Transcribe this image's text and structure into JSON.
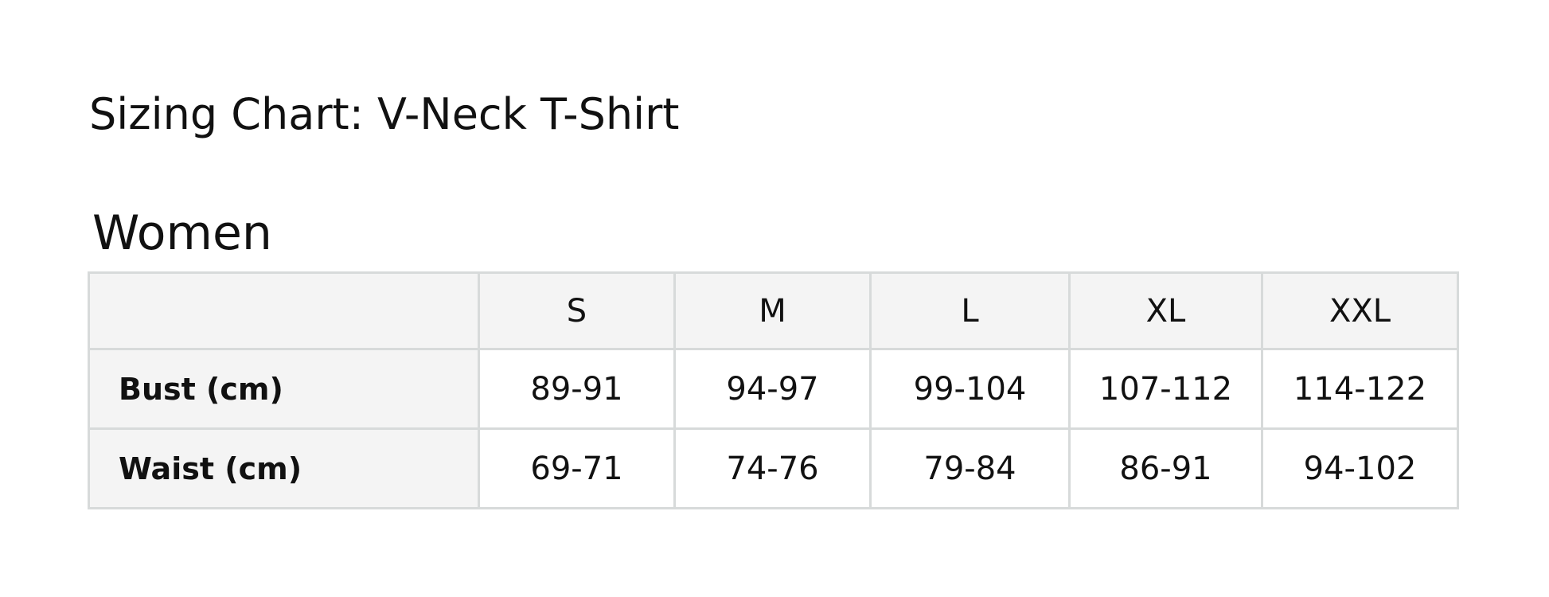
{
  "title": "Sizing Chart: V-Neck T-Shirt",
  "section": "Women",
  "table": {
    "headers": [
      "",
      "S",
      "M",
      "L",
      "XL",
      "XXL"
    ],
    "rows": [
      {
        "label": "Bust (cm)",
        "values": [
          "89-91",
          "94-97",
          "99-104",
          "107-112",
          "114-122"
        ]
      },
      {
        "label": "Waist (cm)",
        "values": [
          "69-71",
          "74-76",
          "79-84",
          "86-91",
          "94-102"
        ]
      }
    ]
  },
  "colors": {
    "border": "#d7dada",
    "header_bg": "#f4f4f4",
    "text": "#111111"
  }
}
